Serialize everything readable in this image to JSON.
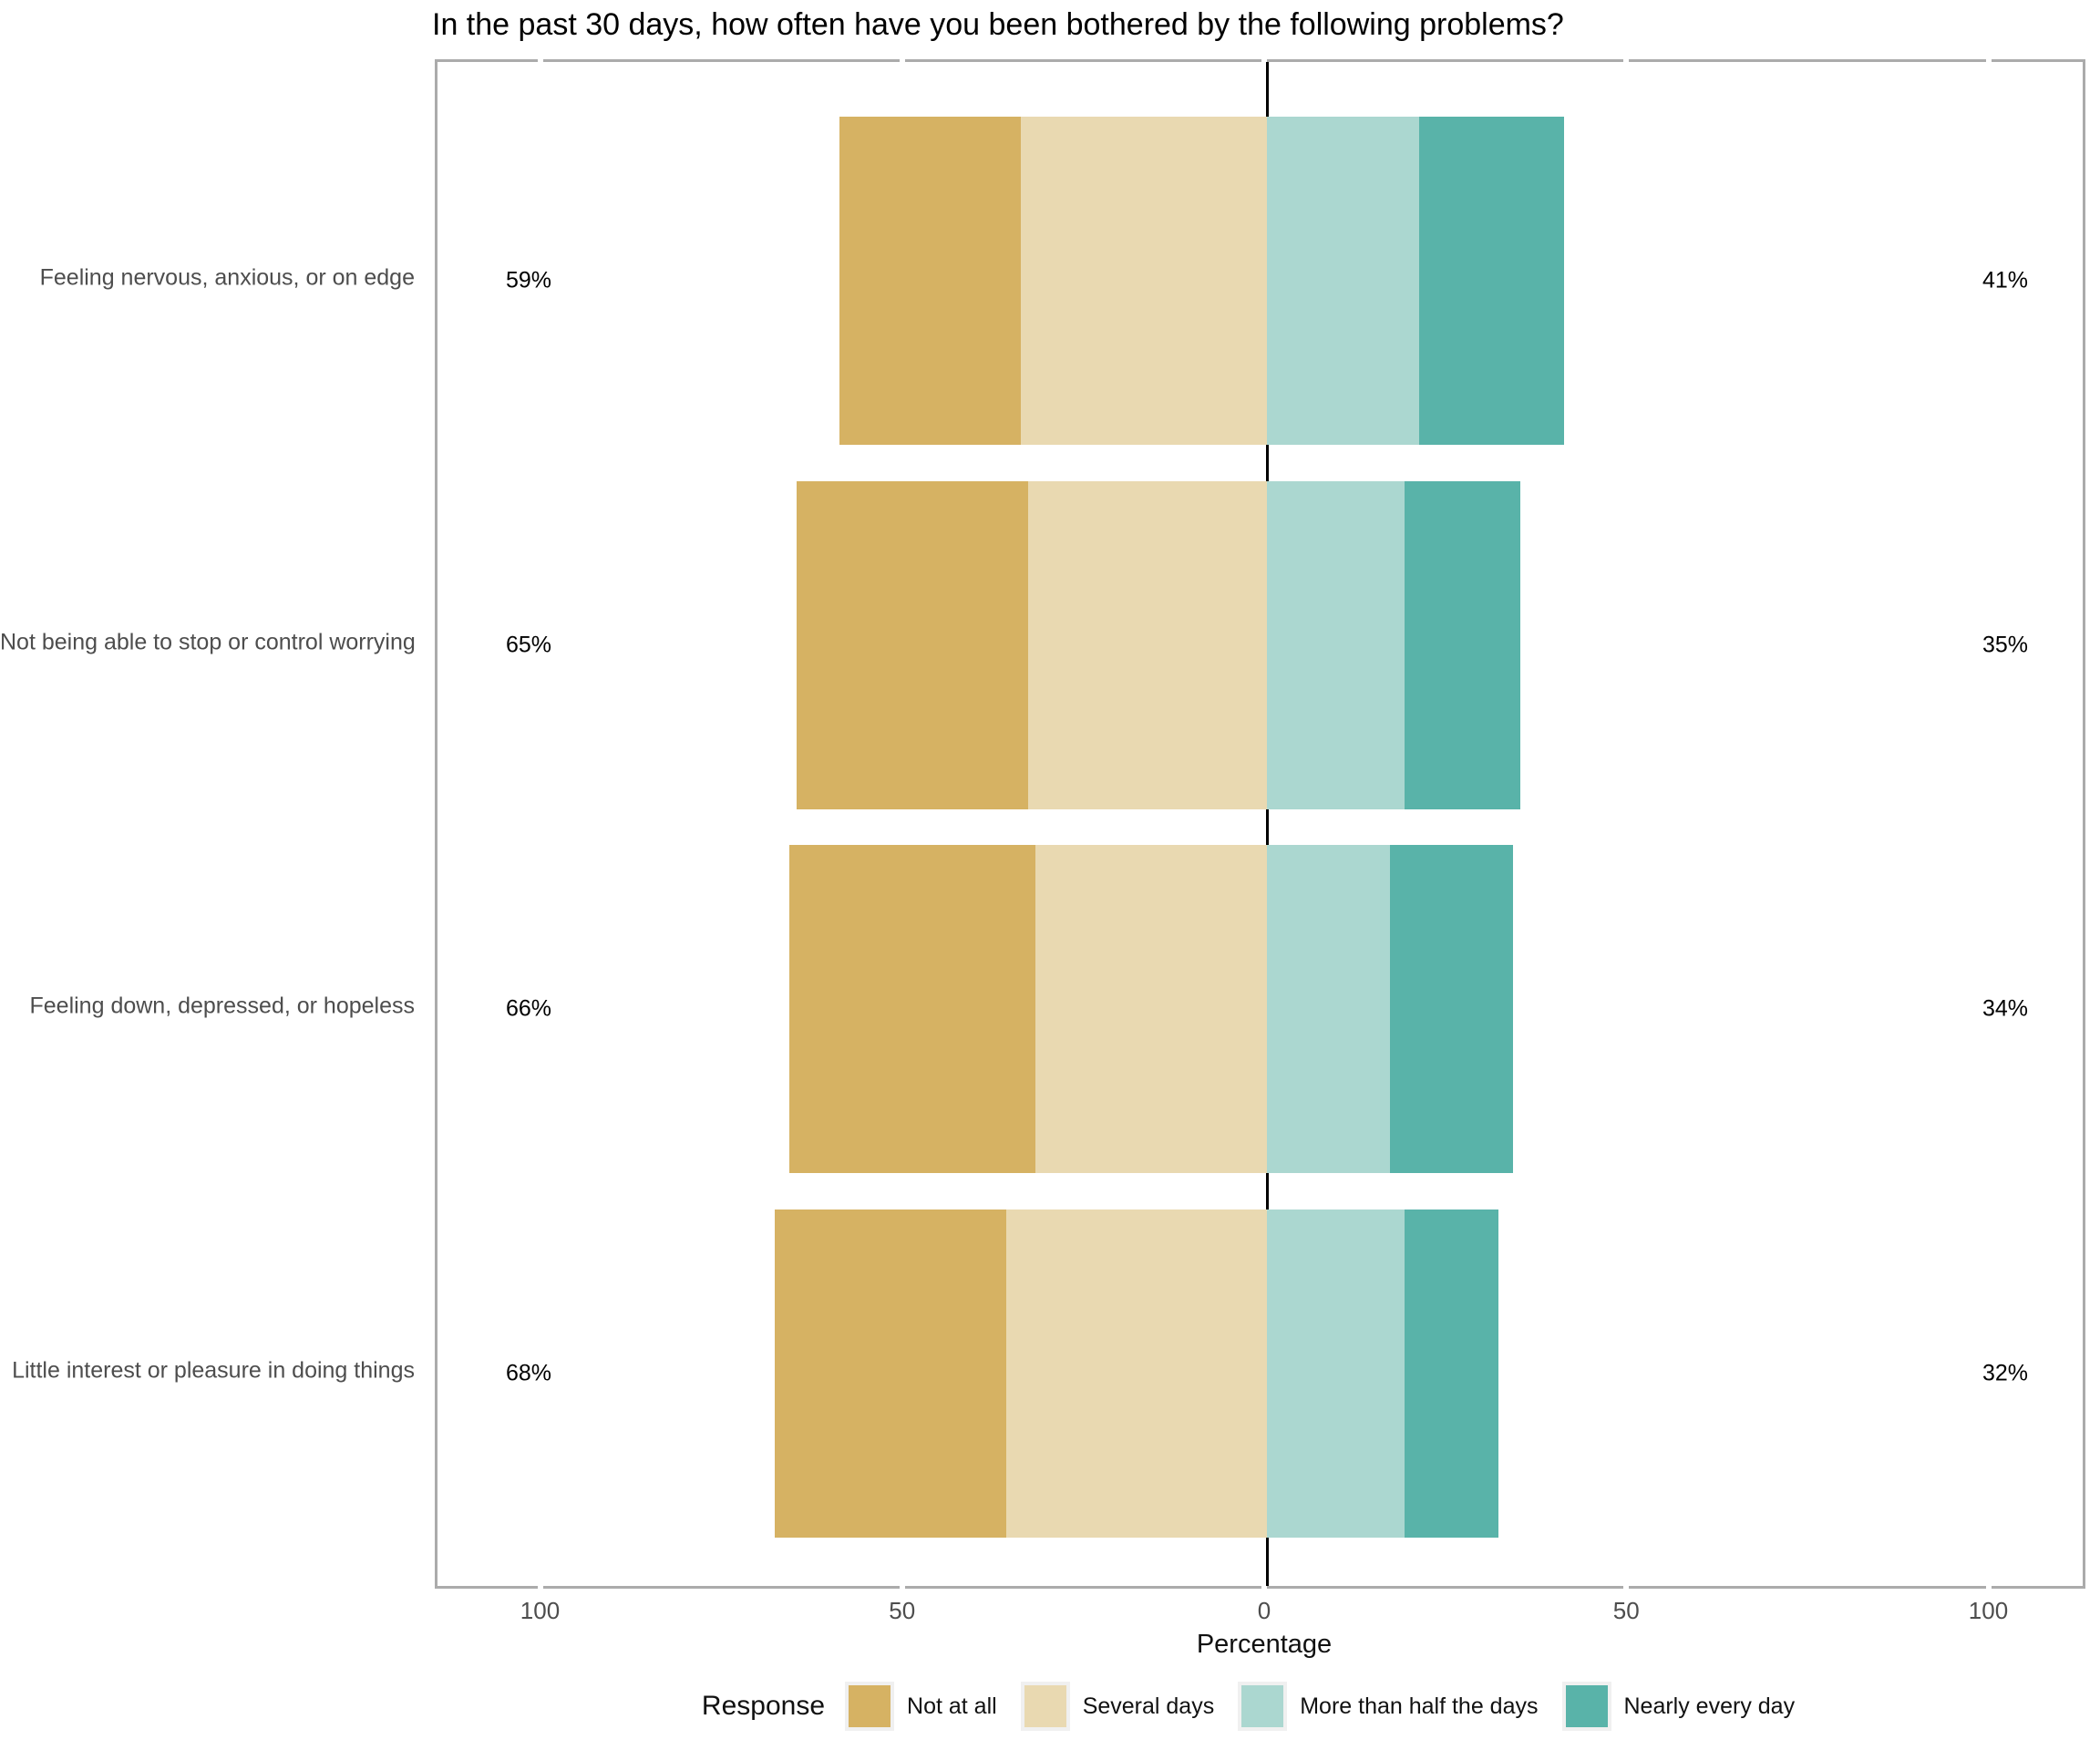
{
  "chart_data": {
    "type": "bar",
    "variant": "diverging-stacked-horizontal",
    "title": "In the past 30 days, how often have you been bothered by the following problems?",
    "xlabel": "Percentage",
    "axis": {
      "range": [
        -114,
        114
      ],
      "ticks": [
        {
          "value": -100,
          "label": "100"
        },
        {
          "value": -50,
          "label": "50"
        },
        {
          "value": 0,
          "label": "0"
        },
        {
          "value": 50,
          "label": "50"
        },
        {
          "value": 100,
          "label": "100"
        }
      ],
      "zero_line_color": "#000000",
      "panel_border_color": "#ABABAB"
    },
    "legend": {
      "title": "Response",
      "position": "bottom"
    },
    "series": [
      {
        "name": "Not at all",
        "color": "#D6B263"
      },
      {
        "name": "Several days",
        "color": "#E9D9B1"
      },
      {
        "name": "More than half the days",
        "color": "#ABD7D0"
      },
      {
        "name": "Nearly every day",
        "color": "#59B3A9"
      }
    ],
    "categories": [
      {
        "label": "Feeling nervous, anxious, or on edge",
        "left_total_label": "59%",
        "right_total_label": "41%",
        "values": [
          25,
          34,
          21,
          20
        ]
      },
      {
        "label": "Not being able to stop or control worrying",
        "left_total_label": "65%",
        "right_total_label": "35%",
        "values": [
          32,
          33,
          19,
          16
        ]
      },
      {
        "label": "Feeling down, depressed, or hopeless",
        "left_total_label": "66%",
        "right_total_label": "34%",
        "values": [
          34,
          32,
          17,
          17
        ]
      },
      {
        "label": "Little interest or pleasure in doing things",
        "left_total_label": "68%",
        "right_total_label": "32%",
        "values": [
          32,
          36,
          19,
          13
        ]
      }
    ]
  }
}
